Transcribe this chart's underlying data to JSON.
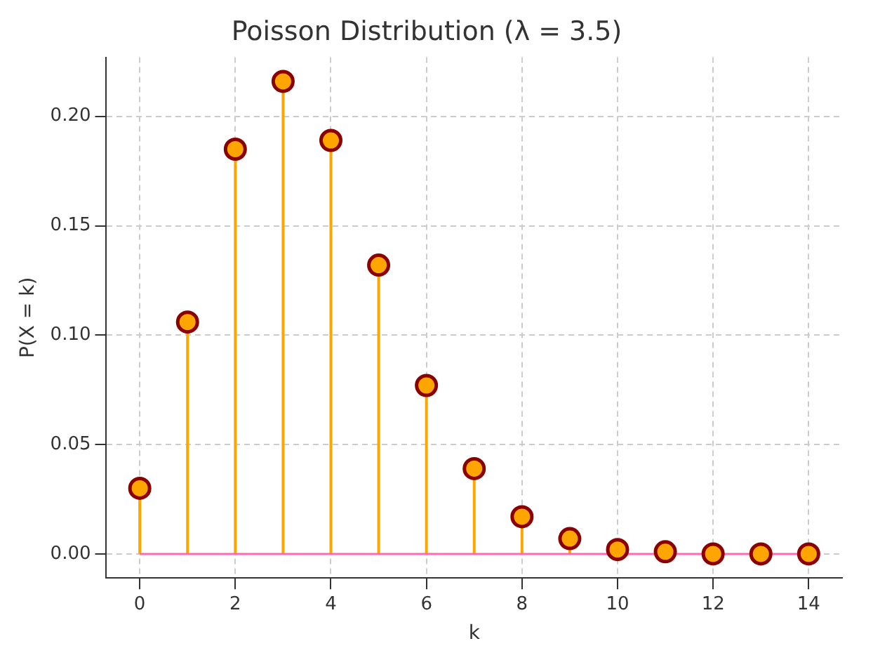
{
  "chart_data": {
    "type": "lollipop",
    "title": "Poisson Distribution (λ = 3.5)",
    "xlabel": "k",
    "ylabel": "P(X = k)",
    "x": [
      0,
      1,
      2,
      3,
      4,
      5,
      6,
      7,
      8,
      9,
      10,
      11,
      12,
      13,
      14
    ],
    "series": [
      {
        "color": "#ffa500",
        "values": [
          0.03,
          0.106,
          0.185,
          0.216,
          0.189,
          0.132,
          0.077,
          0.039,
          0.017,
          0.007,
          0.002,
          0.001,
          0.0,
          0.0,
          0.0
        ]
      }
    ],
    "xlim": [
      -0.7,
      14.7
    ],
    "ylim": [
      -0.011,
      0.227
    ],
    "xticks": [
      0,
      2,
      4,
      6,
      8,
      10,
      12,
      14
    ],
    "yticks": [
      {
        "value": 0,
        "label": "0.00"
      },
      {
        "value": 0.05,
        "label": "0.05"
      },
      {
        "value": 0.1,
        "label": "0.10"
      },
      {
        "value": 0.15,
        "label": "0.15"
      },
      {
        "value": 0.2,
        "label": "0.20"
      }
    ],
    "ref_lines": [
      {
        "axis": "y",
        "value": 0,
        "color": "#ff69b4"
      }
    ],
    "grid": true,
    "marker": "circle",
    "legend": false
  }
}
